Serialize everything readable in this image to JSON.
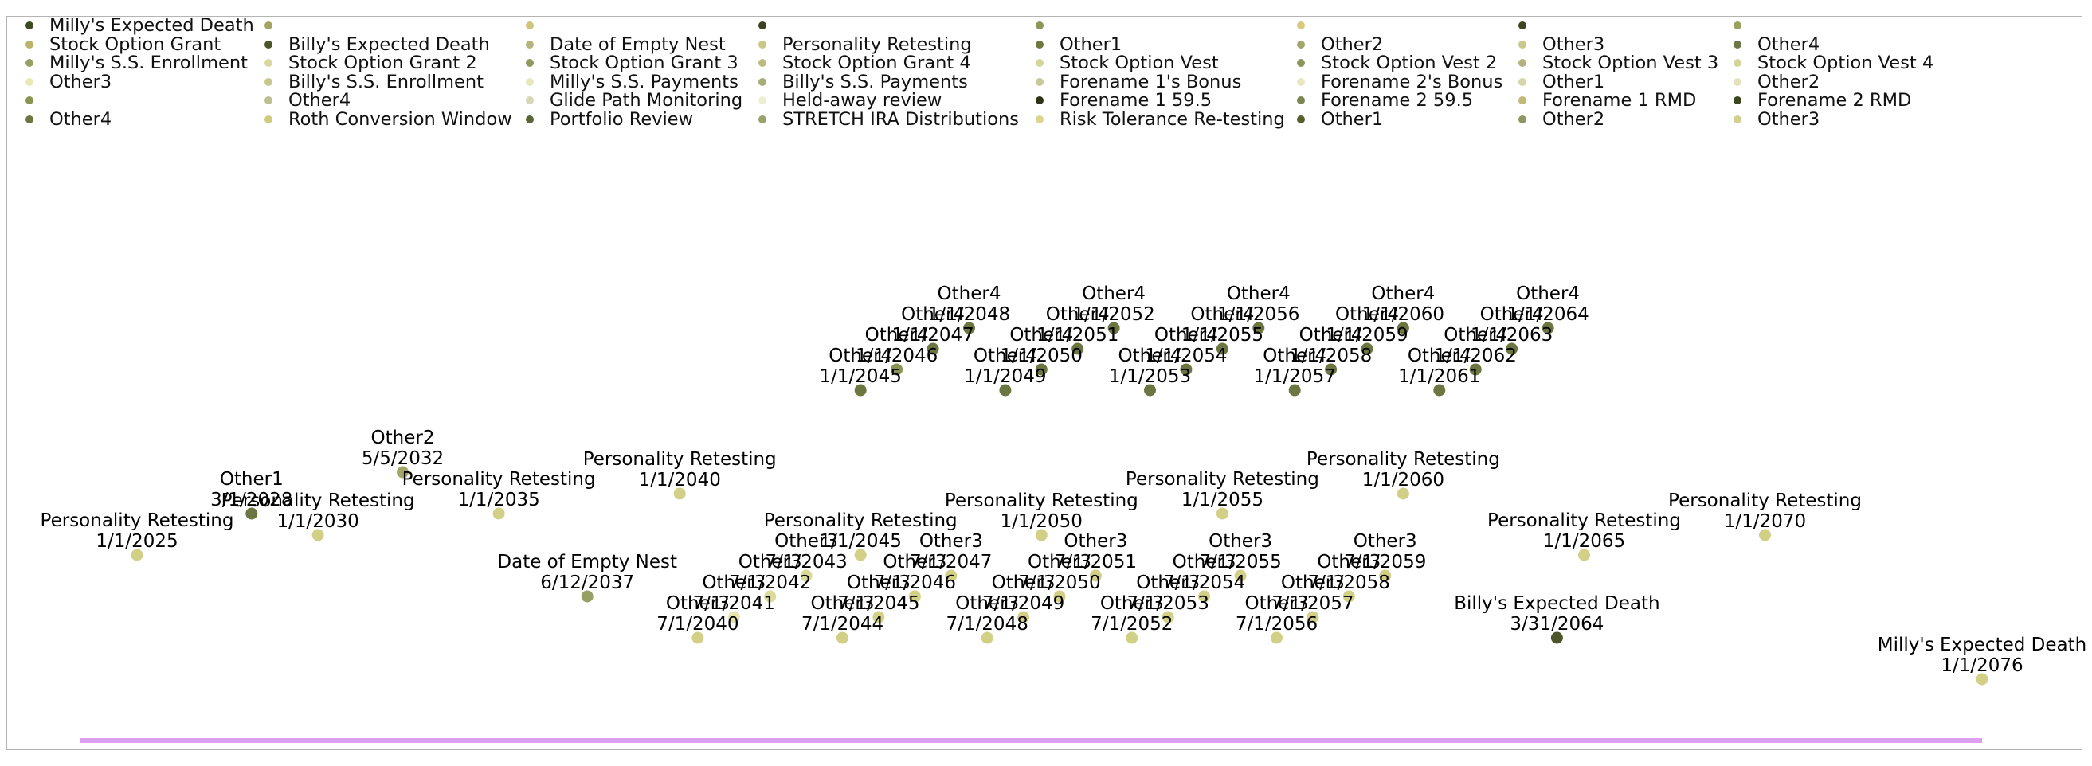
{
  "chart_data": {
    "type": "timeline",
    "title": "",
    "xlabel": "",
    "ylabel": "",
    "legend_position": "top",
    "axis_color": "#dda0f0",
    "x_range": [
      "1/1/2025",
      "1/1/2076"
    ],
    "legend": [
      {
        "label": "Milly's Expected Death",
        "color": "#3d4a1f"
      },
      {
        "label": "Stock Option Grant",
        "color": "#b8b56a"
      },
      {
        "label": "Milly's S.S. Enrollment",
        "color": "#97a063"
      },
      {
        "label": "Other3",
        "color": "#e9e9b6"
      },
      {
        "label": "",
        "color": "#8a9452"
      },
      {
        "label": "Other4",
        "color": "#6b7640"
      },
      {
        "label": "",
        "color": "#a3a464"
      },
      {
        "label": "Billy's Expected Death",
        "color": "#4c5628"
      },
      {
        "label": "Stock Option Grant 2",
        "color": "#d8d8a0"
      },
      {
        "label": "Billy's S.S. Enrollment",
        "color": "#c7c88b"
      },
      {
        "label": "Other4",
        "color": "#bdc192"
      },
      {
        "label": "Roth Conversion Window",
        "color": "#cfcc7d"
      },
      {
        "label": "",
        "color": "#cfc57a"
      },
      {
        "label": "Date of Empty Nest",
        "color": "#b6b47a"
      },
      {
        "label": "Stock Option Grant 3",
        "color": "#8f9a5c"
      },
      {
        "label": "Milly's S.S. Payments",
        "color": "#e7e8be"
      },
      {
        "label": "Glide Path Monitoring",
        "color": "#d5d8b4"
      },
      {
        "label": "Portfolio Review",
        "color": "#5a6636"
      },
      {
        "label": "",
        "color": "#3a4220"
      },
      {
        "label": "Personality Retesting",
        "color": "#c9c986"
      },
      {
        "label": "Stock Option Grant 4",
        "color": "#bcbc80"
      },
      {
        "label": "Billy's S.S. Payments",
        "color": "#a7ad77"
      },
      {
        "label": "Held-away review",
        "color": "#eef0d4"
      },
      {
        "label": "STRETCH IRA Distributions",
        "color": "#98a36a"
      },
      {
        "label": "",
        "color": "#8c9656"
      },
      {
        "label": "Other1",
        "color": "#6d7842"
      },
      {
        "label": "Stock Option Vest",
        "color": "#d3d59b"
      },
      {
        "label": "Forename 1's Bonus",
        "color": "#c8ca9c"
      },
      {
        "label": "Forename 1 59.5",
        "color": "#2e3418"
      },
      {
        "label": "Risk Tolerance Re-testing",
        "color": "#d8d78e"
      },
      {
        "label": "",
        "color": "#d8c980"
      },
      {
        "label": "Other2",
        "color": "#a2a66a"
      },
      {
        "label": "Stock Option Vest 2",
        "color": "#8c965a"
      },
      {
        "label": "Forename 2's Bonus",
        "color": "#e8e8c0"
      },
      {
        "label": "Forename 2 59.5",
        "color": "#7b8650"
      },
      {
        "label": "Other1",
        "color": "#555f30"
      },
      {
        "label": "",
        "color": "#3d4522"
      },
      {
        "label": "Other3",
        "color": "#c9c88c"
      },
      {
        "label": "Stock Option Vest 3",
        "color": "#b0b37e"
      },
      {
        "label": "Other1",
        "color": "#d4d6a8"
      },
      {
        "label": "Forename 1 RMD",
        "color": "#c2b878"
      },
      {
        "label": "Other2",
        "color": "#8e9760"
      },
      {
        "label": "",
        "color": "#9aa060"
      },
      {
        "label": "Other4",
        "color": "#6d7845"
      },
      {
        "label": "Stock Option Vest 4",
        "color": "#d4d49a"
      },
      {
        "label": "Other2",
        "color": "#e2e3ba"
      },
      {
        "label": "Forename 2 RMD",
        "color": "#3b4520"
      },
      {
        "label": "Other3",
        "color": "#d1d08e"
      }
    ],
    "events": [
      {
        "name": "Personality Retesting",
        "date": "1/1/2025",
        "color": "#d2cf87"
      },
      {
        "name": "Other1",
        "date": "3/1/2028",
        "color": "#6b7640"
      },
      {
        "name": "Personality Retesting",
        "date": "1/1/2030",
        "color": "#d2cf87"
      },
      {
        "name": "Other2",
        "date": "5/5/2032",
        "color": "#a2a66a"
      },
      {
        "name": "Personality Retesting",
        "date": "1/1/2035",
        "color": "#d2cf87"
      },
      {
        "name": "Date of Empty Nest",
        "date": "6/12/2037",
        "color": "#97a063"
      },
      {
        "name": "Personality Retesting",
        "date": "1/1/2040",
        "color": "#d2cf87"
      },
      {
        "name": "Other3",
        "date": "7/1/2040",
        "color": "#d2cf87"
      },
      {
        "name": "Other3",
        "date": "7/1/2041",
        "color": "#e6e5b0"
      },
      {
        "name": "Other3",
        "date": "7/1/2042",
        "color": "#dcdb9c"
      },
      {
        "name": "Other3",
        "date": "7/1/2043",
        "color": "#d9d99a"
      },
      {
        "name": "Other3",
        "date": "7/1/2044",
        "color": "#d2cf87"
      },
      {
        "name": "Personality Retesting",
        "date": "1/1/2045",
        "color": "#d2cf87"
      },
      {
        "name": "Other4",
        "date": "1/1/2045",
        "color": "#6b7640"
      },
      {
        "name": "Other3",
        "date": "7/1/2045",
        "color": "#d2cf87"
      },
      {
        "name": "Other4",
        "date": "1/1/2046",
        "color": "#8a9452"
      },
      {
        "name": "Other3",
        "date": "7/1/2046",
        "color": "#d2cf87"
      },
      {
        "name": "Other4",
        "date": "1/1/2047",
        "color": "#6b7640"
      },
      {
        "name": "Other3",
        "date": "7/1/2047",
        "color": "#d2cf87"
      },
      {
        "name": "Other4",
        "date": "1/1/2048",
        "color": "#6b7640"
      },
      {
        "name": "Other3",
        "date": "7/1/2048",
        "color": "#d2cf87"
      },
      {
        "name": "Other4",
        "date": "1/1/2049",
        "color": "#6b7640"
      },
      {
        "name": "Other3",
        "date": "7/1/2049",
        "color": "#d2cf87"
      },
      {
        "name": "Personality Retesting",
        "date": "1/1/2050",
        "color": "#d2cf87"
      },
      {
        "name": "Other4",
        "date": "1/1/2050",
        "color": "#6b7640"
      },
      {
        "name": "Other3",
        "date": "7/1/2050",
        "color": "#d2cf87"
      },
      {
        "name": "Other4",
        "date": "1/1/2051",
        "color": "#6b7640"
      },
      {
        "name": "Other3",
        "date": "7/1/2051",
        "color": "#d2cf87"
      },
      {
        "name": "Other4",
        "date": "1/1/2052",
        "color": "#6b7640"
      },
      {
        "name": "Other3",
        "date": "7/1/2052",
        "color": "#d2cf87"
      },
      {
        "name": "Other4",
        "date": "1/1/2053",
        "color": "#6b7640"
      },
      {
        "name": "Other3",
        "date": "7/1/2053",
        "color": "#d2cf87"
      },
      {
        "name": "Other4",
        "date": "1/1/2054",
        "color": "#6b7640"
      },
      {
        "name": "Other3",
        "date": "7/1/2054",
        "color": "#d2cf87"
      },
      {
        "name": "Personality Retesting",
        "date": "1/1/2055",
        "color": "#d2cf87"
      },
      {
        "name": "Other4",
        "date": "1/1/2055",
        "color": "#6b7640"
      },
      {
        "name": "Other3",
        "date": "7/1/2055",
        "color": "#d2cf87"
      },
      {
        "name": "Other4",
        "date": "1/1/2056",
        "color": "#6b7640"
      },
      {
        "name": "Other3",
        "date": "7/1/2056",
        "color": "#d2cf87"
      },
      {
        "name": "Other4",
        "date": "1/1/2057",
        "color": "#6b7640"
      },
      {
        "name": "Other3",
        "date": "7/1/2057",
        "color": "#d2cf87"
      },
      {
        "name": "Other4",
        "date": "1/1/2058",
        "color": "#6b7640"
      },
      {
        "name": "Other3",
        "date": "7/1/2058",
        "color": "#d2cf87"
      },
      {
        "name": "Other4",
        "date": "1/1/2059",
        "color": "#6b7640"
      },
      {
        "name": "Other3",
        "date": "7/1/2059",
        "color": "#d2cf87"
      },
      {
        "name": "Personality Retesting",
        "date": "1/1/2060",
        "color": "#d2cf87"
      },
      {
        "name": "Other4",
        "date": "1/1/2060",
        "color": "#6b7640"
      },
      {
        "name": "Other4",
        "date": "1/1/2061",
        "color": "#6b7640"
      },
      {
        "name": "Other4",
        "date": "1/1/2062",
        "color": "#6b7640"
      },
      {
        "name": "Other4",
        "date": "1/1/2063",
        "color": "#6b7640"
      },
      {
        "name": "Billy's Expected Death",
        "date": "3/31/2064",
        "color": "#4c5628"
      },
      {
        "name": "Other4",
        "date": "1/1/2064",
        "color": "#6b7640"
      },
      {
        "name": "Personality Retesting",
        "date": "1/1/2065",
        "color": "#d2cf87"
      },
      {
        "name": "Personality Retesting",
        "date": "1/1/2070",
        "color": "#d2cf87"
      },
      {
        "name": "Milly's Expected Death",
        "date": "1/1/2076",
        "color": "#d2cf87"
      }
    ]
  }
}
